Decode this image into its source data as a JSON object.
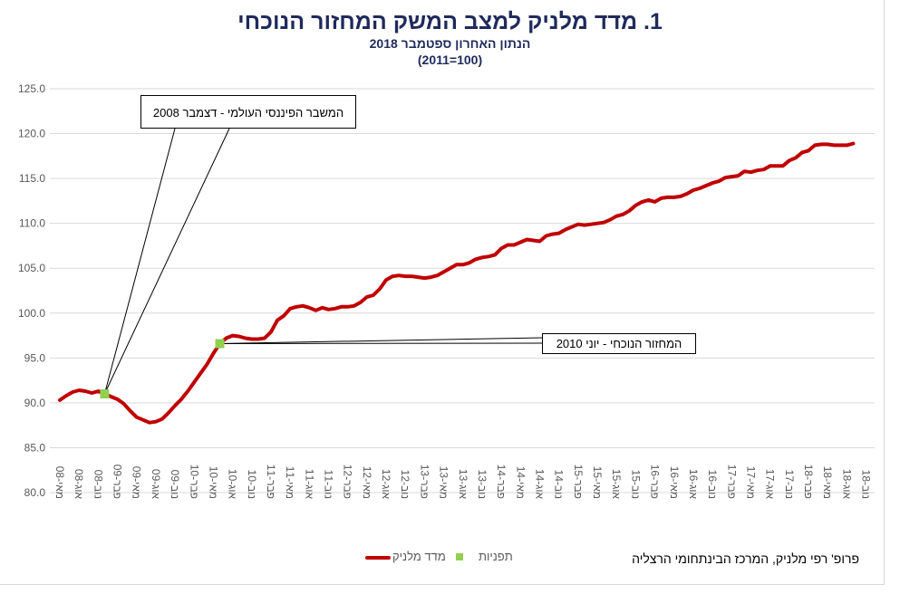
{
  "chart_data": {
    "type": "line",
    "title": "1. מדד מלניק למצב המשק המחזור הנוכחי",
    "subtitle": "הנתון האחרון ספטמבר 2018",
    "subtitle2": "(100=2011)",
    "ylim": [
      80,
      125
    ],
    "yticks": [
      "80.0",
      "85.0",
      "90.0",
      "95.0",
      "100.0",
      "105.0",
      "110.0",
      "115.0",
      "120.0",
      "125.0"
    ],
    "ytick_values": [
      80,
      85,
      90,
      95,
      100,
      105,
      110,
      115,
      120,
      125
    ],
    "grid": true,
    "xlabel_step_months": 3,
    "xticks": [
      "מאי-08",
      "אוג-08",
      "נוב-08",
      "פבר-09",
      "מאי-09",
      "אוג-09",
      "נוב-09",
      "פבר-10",
      "מאי-10",
      "אוג-10",
      "נוב-10",
      "פבר-11",
      "מאי-11",
      "אוג-11",
      "נוב-11",
      "פבר-12",
      "מאי-12",
      "אוג-12",
      "נוב-12",
      "פבר-13",
      "מאי-13",
      "אוג-13",
      "נוב-13",
      "פבר-14",
      "מאי-14",
      "אוג-14",
      "נוב-14",
      "פבר-15",
      "מאי-15",
      "אוג-15",
      "נוב-15",
      "פבר-16",
      "מאי-16",
      "אוג-16",
      "נוב-16",
      "פבר-17",
      "מאי-17",
      "אוג-17",
      "נוב-17",
      "פבר-18",
      "מאי-18",
      "אוג-18",
      "נוב-18"
    ],
    "series": [
      {
        "name": "מדד מלניק",
        "color": "#c00000",
        "start": "2008-05",
        "frequency": "monthly",
        "values": [
          90.3,
          90.8,
          91.2,
          91.4,
          91.3,
          91.1,
          91.3,
          91.0,
          90.7,
          90.4,
          89.9,
          89.1,
          88.4,
          88.1,
          87.8,
          87.9,
          88.2,
          88.9,
          89.7,
          90.4,
          91.3,
          92.3,
          93.3,
          94.3,
          95.5,
          96.6,
          97.2,
          97.5,
          97.4,
          97.2,
          97.1,
          97.1,
          97.2,
          97.9,
          99.2,
          99.7,
          100.5,
          100.7,
          100.8,
          100.6,
          100.3,
          100.6,
          100.4,
          100.5,
          100.7,
          100.7,
          100.8,
          101.2,
          101.8,
          102.0,
          102.7,
          103.7,
          104.1,
          104.2,
          104.1,
          104.1,
          104.0,
          103.9,
          104.0,
          104.2,
          104.6,
          105.0,
          105.4,
          105.4,
          105.6,
          106.0,
          106.2,
          106.3,
          106.5,
          107.2,
          107.6,
          107.6,
          107.9,
          108.2,
          108.1,
          108.0,
          108.6,
          108.8,
          108.9,
          109.3,
          109.6,
          109.9,
          109.8,
          109.9,
          110.0,
          110.1,
          110.4,
          110.8,
          111.0,
          111.4,
          112.0,
          112.4,
          112.6,
          112.4,
          112.8,
          112.9,
          112.9,
          113.0,
          113.3,
          113.7,
          113.9,
          114.2,
          114.5,
          114.7,
          115.1,
          115.2,
          115.3,
          115.8,
          115.7,
          115.9,
          116.0,
          116.4,
          116.4,
          116.4,
          117.0,
          117.3,
          117.9,
          118.1,
          118.7,
          118.8,
          118.8,
          118.7,
          118.7,
          118.7,
          118.9
        ]
      },
      {
        "name": "תפניות",
        "color": "#92d050",
        "type": "marker",
        "points": [
          {
            "month_index": 7,
            "value": 91.0
          },
          {
            "month_index": 25,
            "value": 96.6
          }
        ]
      }
    ],
    "annotations": [
      {
        "text": "המשבר הפיננסי העולמי - דצמבר 2008",
        "month_index": 7
      },
      {
        "text": "המחזור הנוכחי - יוני 2010",
        "month_index": 25
      }
    ],
    "legend": {
      "placement": "bottom",
      "items": [
        "מדד מלניק",
        "תפניות"
      ]
    }
  },
  "footer": "פרופ' רפי מלניק, המרכז הבינתחומי הרצליה"
}
